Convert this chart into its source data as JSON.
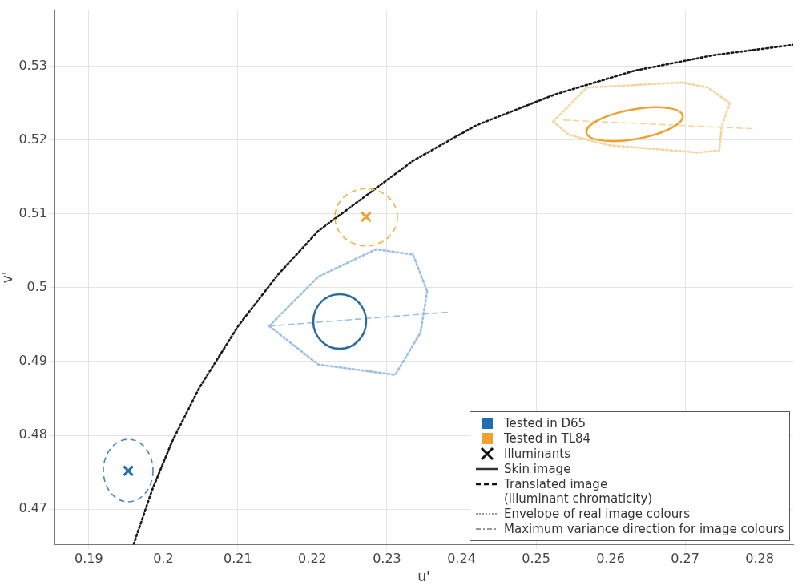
{
  "chart_data": {
    "type": "line",
    "xlabel": "u'",
    "ylabel": "v'",
    "xlim": [
      0.1854,
      0.2845
    ],
    "ylim": [
      0.4652,
      0.5376
    ],
    "xticks": [
      0.19,
      0.2,
      0.21,
      0.22,
      0.23,
      0.24,
      0.25,
      0.26,
      0.27,
      0.28
    ],
    "yticks": [
      0.47,
      0.48,
      0.49,
      0.5,
      0.51,
      0.52,
      0.53
    ],
    "grid": true,
    "annotations": [
      "Tested in D65",
      "Tested in TL84",
      "Illuminants",
      "Skin image",
      "Translated image\n(illuminant chromaticity)",
      "Envelope of real image colours",
      "Maximum variance direction for image colours"
    ],
    "series": [
      {
        "type": "scatter",
        "marker": "cross",
        "colors": [
          "#1f6fb0",
          "#f0a030"
        ],
        "x": [
          0.1953,
          0.2272
        ],
        "values": [
          0.4752,
          0.5096
        ]
      },
      {
        "line_style": "dotted",
        "color": "#9cc0e4",
        "x": [
          0.2142,
          0.2208,
          0.2285,
          0.2335,
          0.2354
        ],
        "values": [
          0.4948,
          0.5015,
          0.5052,
          0.5045,
          0.4995
        ]
      },
      {
        "line_style": "dotted",
        "color": "#9cc0e4",
        "x": [
          0.2142,
          0.2208,
          0.2311,
          0.2345,
          0.2354
        ],
        "values": [
          0.4948,
          0.4896,
          0.4882,
          0.4939,
          0.4995
        ]
      },
      {
        "line_style": "dotted",
        "color": "#f6d4a0",
        "x": [
          0.2523,
          0.2568,
          0.2696,
          0.2731,
          0.276
        ],
        "values": [
          0.5225,
          0.5271,
          0.5278,
          0.5271,
          0.525
        ]
      },
      {
        "line_style": "dotted",
        "color": "#f6d4a0",
        "x": [
          0.2523,
          0.2544,
          0.2597,
          0.2717,
          0.2746,
          0.2749,
          0.276
        ],
        "values": [
          0.5225,
          0.5207,
          0.5193,
          0.5183,
          0.5186,
          0.5218,
          0.525
        ]
      },
      {
        "line_style": "dashed",
        "color": "#9cc0e4",
        "x": [
          0.2142,
          0.2383
        ],
        "values": [
          0.4948,
          0.4967
        ]
      },
      {
        "line_style": "dashed",
        "color": "#f6d4a0",
        "x": [
          0.2537,
          0.2795
        ],
        "values": [
          0.5227,
          0.5215
        ]
      },
      {
        "line_style": "dotted",
        "color": "#1a1a1a",
        "x": [
          0.196,
          0.1985,
          0.2011,
          0.2048,
          0.2101,
          0.2154,
          0.2208,
          0.2271,
          0.2335,
          0.242,
          0.2526,
          0.2632,
          0.2738,
          0.2845
        ],
        "values": [
          0.4652,
          0.4726,
          0.479,
          0.4864,
          0.4949,
          0.5018,
          0.5077,
          0.5124,
          0.5172,
          0.522,
          0.5262,
          0.5294,
          0.5315,
          0.5329
        ]
      }
    ]
  }
}
